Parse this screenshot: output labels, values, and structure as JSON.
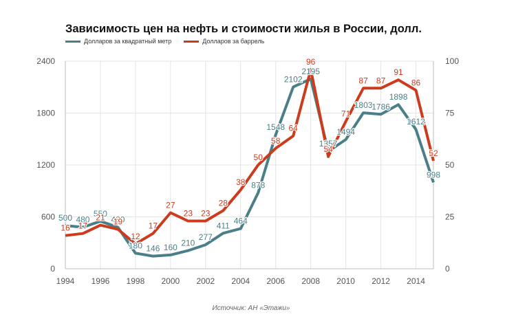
{
  "title": "Зависимость цен на нефть и стоимости жилья в России, долл.",
  "source": "Источник: АН «Этажи»",
  "chart_data": {
    "type": "line",
    "title": "Зависимость цен на нефть и стоимости жилья в России, долл.",
    "legend_position": "top-left",
    "grid": true,
    "x": [
      1994,
      1995,
      1996,
      1997,
      1998,
      1999,
      2000,
      2001,
      2002,
      2003,
      2004,
      2005,
      2006,
      2007,
      2008,
      2009,
      2010,
      2011,
      2012,
      2013,
      2014,
      2015
    ],
    "x_ticks": [
      "1994",
      "1996",
      "1998",
      "2000",
      "2002",
      "2004",
      "2006",
      "2008",
      "2010",
      "2012",
      "2014"
    ],
    "y_left": {
      "lim": [
        0,
        2400
      ],
      "ticks": [
        "0",
        "600",
        "1200",
        "1800",
        "2400"
      ]
    },
    "y_right": {
      "lim": [
        0,
        100
      ],
      "ticks": [
        "0",
        "25",
        "50",
        "75",
        "100"
      ]
    },
    "series": [
      {
        "name": "Долларов за квадратный метр",
        "color": "#4a7f88",
        "axis": "left",
        "values": [
          500,
          480,
          550,
          480,
          180,
          146,
          160,
          210,
          277,
          411,
          464,
          878,
          1548,
          2102,
          2195,
          1357,
          1494,
          1803,
          1786,
          1898,
          1612,
          998
        ],
        "labels": [
          "500",
          "480",
          "550",
          "480",
          "180",
          "146",
          "160",
          "210",
          "277",
          "411",
          "464",
          "878",
          "1548",
          "2102",
          "2195",
          "1357",
          "1494",
          "1803",
          "1786",
          "1898",
          "1612",
          "998"
        ]
      },
      {
        "name": "Долларов за баррель",
        "color": "#cc3b1d",
        "axis": "right",
        "values": [
          16,
          17,
          21,
          19,
          12,
          17,
          27,
          23,
          23,
          28,
          38,
          50,
          58,
          64,
          96,
          54,
          71,
          87,
          87,
          91,
          86,
          52
        ],
        "labels": [
          "16",
          "17",
          "21",
          "19",
          "12",
          "17",
          "27",
          "23",
          "23",
          "28",
          "38",
          "50",
          "58",
          "64",
          "96",
          "54",
          "71",
          "87",
          "87",
          "91",
          "86",
          "52"
        ]
      }
    ]
  }
}
